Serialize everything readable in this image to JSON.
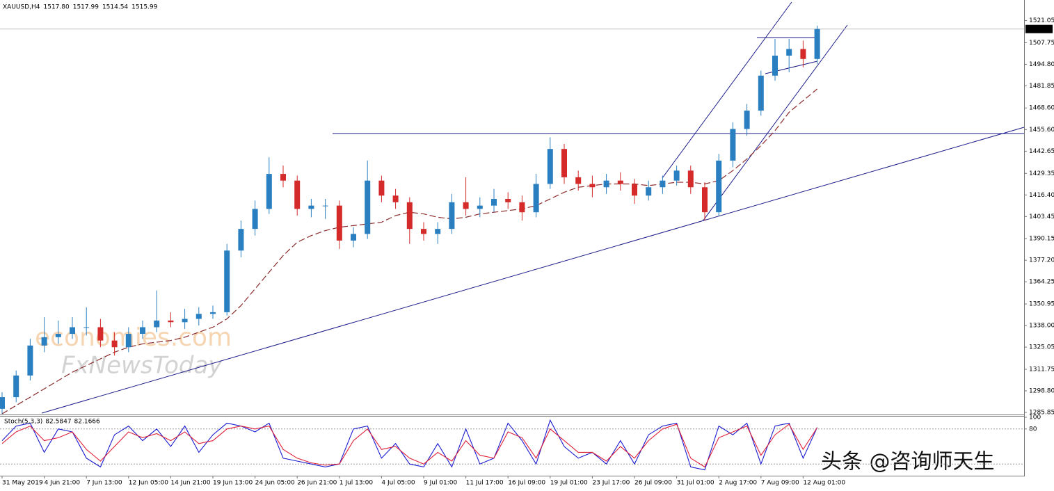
{
  "header": {
    "symbol": "XAUUSD,H4",
    "quote": [
      "1517.80",
      "1517.99",
      "1514.54",
      "1515.99"
    ]
  },
  "watermarks": [
    "economies.com",
    "FxNewsToday",
    "头条 @咨询师天生"
  ],
  "chart_data": [
    {
      "type": "candlestick",
      "categories": [
        "31 May 2019",
        null,
        null,
        "4 Jun 21:00",
        null,
        null,
        "7 Jun 13:00",
        null,
        null,
        "12 Jun 05:00",
        null,
        null,
        "14 Jun 21:00",
        null,
        null,
        "19 Jun 13:00",
        null,
        null,
        "24 Jun 05:00",
        null,
        null,
        "26 Jun 21:00",
        null,
        null,
        "1 Jul 13:00",
        null,
        null,
        "4 Jul 05:00",
        null,
        null,
        "9 Jul 01:00",
        null,
        null,
        "11 Jul 17:00",
        null,
        null,
        "16 Jul 09:00",
        null,
        null,
        "19 Jul 01:00",
        null,
        null,
        "23 Jul 17:00",
        null,
        null,
        "26 Jul 09:00",
        null,
        null,
        "31 Jul 01:00",
        null,
        null,
        "2 Aug 17:00",
        null,
        null,
        "7 Aug 09:00",
        null,
        null,
        "12 Aug 01:00",
        null
      ],
      "open": [
        1288,
        1295,
        1308,
        1326,
        1331,
        1333,
        1337,
        1337,
        1329,
        1325,
        1333,
        1337,
        1341,
        1340,
        1342,
        1345,
        1346,
        1383,
        1396,
        1408,
        1429,
        1425,
        1408,
        1410,
        1410,
        1389,
        1393,
        1425,
        1416,
        1412,
        1396,
        1393,
        1396,
        1412,
        1408,
        1410,
        1414,
        1412,
        1406,
        1423,
        1444,
        1427,
        1423,
        1421,
        1425,
        1423,
        1416,
        1421,
        1425,
        1431,
        1421,
        1406,
        1437,
        1456,
        1467,
        1488,
        1500,
        1504,
        1498
      ],
      "high": [
        1298,
        1311,
        1330,
        1343,
        1341,
        1343,
        1349,
        1342,
        1334,
        1337,
        1341,
        1359,
        1346,
        1348,
        1349,
        1350,
        1387,
        1401,
        1413,
        1439,
        1434,
        1428,
        1414,
        1414,
        1413,
        1397,
        1437,
        1428,
        1420,
        1415,
        1400,
        1400,
        1417,
        1427,
        1415,
        1420,
        1418,
        1416,
        1429,
        1451,
        1447,
        1431,
        1428,
        1429,
        1430,
        1426,
        1425,
        1428,
        1434,
        1434,
        1424,
        1441,
        1460,
        1471,
        1491,
        1510,
        1510,
        1509,
        1518
      ],
      "low": [
        1285,
        1292,
        1305,
        1322,
        1327,
        1330,
        1332,
        1325,
        1320,
        1322,
        1330,
        1334,
        1337,
        1336,
        1338,
        1342,
        1344,
        1379,
        1392,
        1405,
        1421,
        1404,
        1403,
        1402,
        1384,
        1385,
        1390,
        1412,
        1408,
        1387,
        1389,
        1387,
        1393,
        1404,
        1403,
        1406,
        1408,
        1401,
        1403,
        1420,
        1423,
        1419,
        1415,
        1417,
        1419,
        1411,
        1413,
        1417,
        1422,
        1417,
        1401,
        1404,
        1433,
        1452,
        1464,
        1485,
        1490,
        1493,
        1495
      ],
      "close": [
        1295,
        1308,
        1326,
        1331,
        1333,
        1337,
        1337,
        1329,
        1325,
        1333,
        1337,
        1341,
        1340,
        1342,
        1345,
        1346,
        1383,
        1396,
        1408,
        1429,
        1425,
        1408,
        1410,
        1410,
        1389,
        1393,
        1425,
        1416,
        1412,
        1396,
        1393,
        1396,
        1412,
        1408,
        1410,
        1414,
        1412,
        1406,
        1423,
        1444,
        1427,
        1423,
        1421,
        1425,
        1423,
        1416,
        1421,
        1425,
        1431,
        1421,
        1406,
        1437,
        1456,
        1467,
        1488,
        1500,
        1504,
        1498,
        1515.99
      ],
      "up_color": "#2a7fc0",
      "down_color": "#d42a2a",
      "ma": {
        "color": "#8b2b2b",
        "values": [
          1285,
          1290,
          1295,
          1300,
          1305,
          1310,
          1314,
          1318,
          1322,
          1325,
          1327,
          1328,
          1329,
          1331,
          1334,
          1337,
          1342,
          1350,
          1360,
          1370,
          1380,
          1388,
          1392,
          1395,
          1397,
          1398,
          1399,
          1400,
          1404,
          1406,
          1405,
          1403,
          1402,
          1403,
          1405,
          1406,
          1407,
          1408,
          1410,
          1414,
          1418,
          1421,
          1422,
          1423,
          1423,
          1423,
          1422,
          1423,
          1424,
          1424,
          1423,
          1425,
          1431,
          1438,
          1446,
          1455,
          1466,
          1473,
          1480
        ]
      },
      "last_price": 1515.99,
      "ylim": [
        1284.6,
        1533.4
      ],
      "yticks": [
        1521.05,
        1507.75,
        {
          "value": 1494.8,
          "label": "1494.80"
        },
        1481.85,
        {
          "value": 1468.6,
          "label": "1468.60"
        },
        {
          "value": 1455.6,
          "label": "1455.60"
        },
        1442.65,
        1429.35,
        {
          "value": 1416.4,
          "label": "1416.40"
        },
        1403.45,
        1390.15,
        {
          "value": 1377.2,
          "label": "1377.20"
        },
        1364.25,
        1350.95,
        {
          "value": 1338,
          "label": "1338.00"
        },
        1325.05,
        1311.75,
        {
          "value": 1298.8,
          "label": "1298.80"
        },
        1285.85
      ]
    },
    {
      "type": "line",
      "title": "Stoch(5,3,3)",
      "series": [
        {
          "color": "#1a1ad0",
          "values": [
            60,
            85,
            90,
            40,
            80,
            75,
            30,
            15,
            70,
            85,
            60,
            80,
            50,
            85,
            40,
            70,
            90,
            85,
            75,
            90,
            30,
            25,
            20,
            15,
            20,
            80,
            85,
            30,
            55,
            20,
            15,
            55,
            15,
            80,
            20,
            30,
            90,
            60,
            20,
            95,
            50,
            30,
            40,
            20,
            60,
            20,
            70,
            85,
            90,
            15,
            10,
            85,
            70,
            90,
            20,
            85,
            90,
            30,
            82.5847
          ]
        },
        {
          "color": "#e0203a",
          "values": [
            55,
            75,
            85,
            60,
            65,
            75,
            45,
            25,
            50,
            75,
            65,
            72,
            60,
            75,
            55,
            60,
            80,
            85,
            80,
            85,
            45,
            30,
            22,
            18,
            20,
            60,
            80,
            45,
            50,
            30,
            20,
            40,
            25,
            60,
            35,
            30,
            75,
            65,
            30,
            80,
            60,
            40,
            40,
            25,
            50,
            30,
            60,
            80,
            88,
            30,
            15,
            65,
            75,
            85,
            35,
            70,
            88,
            45,
            82.1666
          ]
        }
      ],
      "ylim": [
        0,
        100
      ],
      "yticks": [
        100,
        80
      ],
      "levels": [
        80,
        20
      ]
    }
  ]
}
